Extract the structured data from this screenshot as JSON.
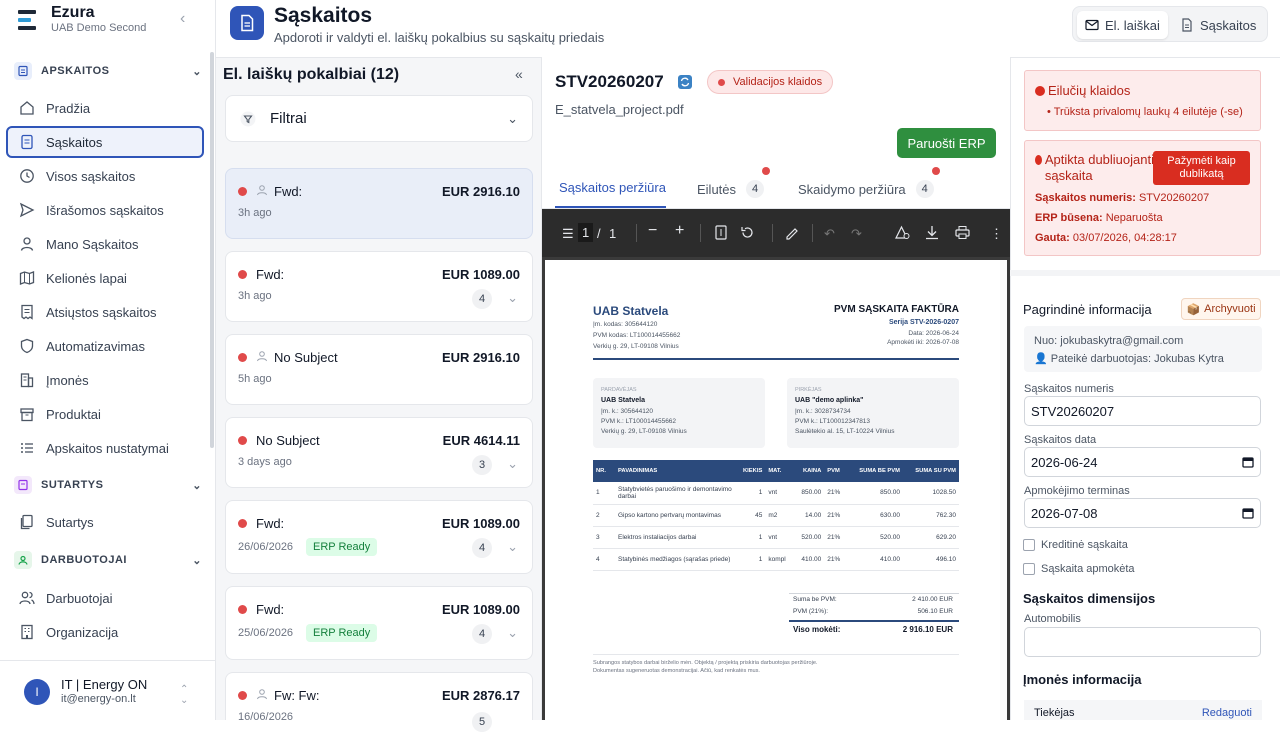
{
  "brand": {
    "name": "Ezura",
    "org": "UAB Demo Second"
  },
  "sidebar": {
    "sections": [
      {
        "label": "APSKAITOS"
      },
      {
        "label": "SUTARTYS"
      },
      {
        "label": "DARBUOTOJAI"
      }
    ],
    "items": [
      {
        "label": "Pradžia",
        "icon": "home-icon"
      },
      {
        "label": "Sąskaitos",
        "icon": "document-icon"
      },
      {
        "label": "Visos sąskaitos",
        "icon": "clock-icon"
      },
      {
        "label": "Išrašomos sąskaitos",
        "icon": "send-icon"
      },
      {
        "label": "Mano Sąskaitos",
        "icon": "user-icon"
      },
      {
        "label": "Kelionės lapai",
        "icon": "map-icon"
      },
      {
        "label": "Atsiųstos sąskaitos",
        "icon": "receipt-icon"
      },
      {
        "label": "Automatizavimas",
        "icon": "shield-icon"
      },
      {
        "label": "Įmonės",
        "icon": "building-icon"
      },
      {
        "label": "Produktai",
        "icon": "box-icon"
      },
      {
        "label": "Apskaitos nustatymai",
        "icon": "list-icon"
      },
      {
        "label": "Sutartys",
        "icon": "contract-icon"
      },
      {
        "label": "Darbuotojai",
        "icon": "users-icon"
      },
      {
        "label": "Organizacija",
        "icon": "office-icon"
      }
    ]
  },
  "user": {
    "initial": "I",
    "name": "IT | Energy ON",
    "email": "it@energy-on.lt"
  },
  "header": {
    "title": "Sąskaitos",
    "subtitle": "Apdoroti ir valdyti el. laiškų pokalbius su sąskaitų priedais",
    "tabs": [
      {
        "label": "El. laiškai"
      },
      {
        "label": "Sąskaitos"
      }
    ]
  },
  "conversations": {
    "title": "El. laiškų pokalbiai (12)",
    "filter_label": "Filtrai",
    "items": [
      {
        "subject": "Fwd:",
        "amount": "EUR 2916.10",
        "time": "3h ago",
        "count": "",
        "badge": ""
      },
      {
        "subject": "Fwd:",
        "amount": "EUR 1089.00",
        "time": "3h ago",
        "count": "4",
        "badge": ""
      },
      {
        "subject": "No Subject",
        "amount": "EUR 2916.10",
        "time": "5h ago",
        "count": "",
        "badge": ""
      },
      {
        "subject": "No Subject",
        "amount": "EUR 4614.11",
        "time": "3 days ago",
        "count": "3",
        "badge": ""
      },
      {
        "subject": "Fwd:",
        "amount": "EUR 1089.00",
        "time": "26/06/2026",
        "count": "4",
        "badge": "ERP Ready"
      },
      {
        "subject": "Fwd:",
        "amount": "EUR 1089.00",
        "time": "25/06/2026",
        "count": "4",
        "badge": "ERP Ready"
      },
      {
        "subject": "Fw: Fw:",
        "amount": "EUR 2876.17",
        "time": "16/06/2026",
        "count": "5",
        "badge": ""
      }
    ]
  },
  "detail": {
    "invoice_id": "STV20260207",
    "status_badge": "Validacijos klaidos",
    "file_name": "E_statvela_project.pdf",
    "erp_button": "Paruošti ERP",
    "tabs": [
      {
        "label": "Sąskaitos peržiūra",
        "count": ""
      },
      {
        "label": "Eilutės",
        "count": "4"
      },
      {
        "label": "Skaidymo peržiūra",
        "count": "4"
      }
    ]
  },
  "pdf": {
    "page_current": "1",
    "page_sep": "/",
    "page_total": "1",
    "seller_name": "UAB Statvela",
    "seller_code": "Įm. kodas: 305644120",
    "seller_vat": "PVM kodas: LT100014455662",
    "seller_addr": "Verkių g. 29, LT-09108 Vilnius",
    "doc_title": "PVM SĄSKAITA FAKTŪRA",
    "doc_series": "Serija STV-2026-0207",
    "doc_date": "Data: 2026-06-24",
    "doc_due": "Apmokėti iki: 2026-07-08",
    "seller_box": {
      "label": "PARDAVĖJAS",
      "name": "UAB Statvela",
      "l1": "Įm. k.: 305644120",
      "l2": "PVM k.: LT100014455662",
      "l3": "Verkių g. 29, LT-09108 Vilnius"
    },
    "buyer_box": {
      "label": "PIRKĖJAS",
      "name": "UAB \"demo aplinka\"",
      "l1": "Įm. k.: 3028734734",
      "l2": "PVM k.: LT100012347813",
      "l3": "Saulėtekio al. 15, LT-10224 Vilnius"
    },
    "table_headers": [
      "NR.",
      "PAVADINIMAS",
      "KIEKIS",
      "MAT.",
      "KAINA",
      "PVM",
      "SUMA BE PVM",
      "SUMA SU PVM"
    ],
    "rows": [
      [
        "1",
        "Statybvietės paruošimo ir demontavimo darbai",
        "1",
        "vnt",
        "850.00",
        "21%",
        "850.00",
        "1028.50"
      ],
      [
        "2",
        "Gipso kartono pertvarų montavimas",
        "45",
        "m2",
        "14.00",
        "21%",
        "630.00",
        "762.30"
      ],
      [
        "3",
        "Elektros instaliacijos darbai",
        "1",
        "vnt",
        "520.00",
        "21%",
        "520.00",
        "629.20"
      ],
      [
        "4",
        "Statybinės medžiagos (sąrašas priede)",
        "1",
        "kompl",
        "410.00",
        "21%",
        "410.00",
        "496.10"
      ]
    ],
    "sum_label": "Suma be PVM:",
    "sum_value": "2 410.00 EUR",
    "vat_label": "PVM (21%):",
    "vat_value": "506.10 EUR",
    "total_label": "Viso mokėti:",
    "total_value": "2 916.10 EUR",
    "footer1": "Subrangos statybos darbai birželio mėn. Objektą / projektą priskiria darbuotojas peržiūroje.",
    "footer2": "Dokumentas sugeneruotas demonstracijai. Ačiū, kad renkatės mus."
  },
  "right": {
    "line_errors": {
      "title": "Eilučių klaidos",
      "item": "Trūksta privalomų laukų 4 eilutėje (-se)"
    },
    "duplicate": {
      "title": "Aptikta dubliuojanti sąskaita",
      "button": "Pažymėti kaip dublikatą",
      "number_label": "Sąskaitos numeris:",
      "number_value": "STV20260207",
      "erp_label": "ERP būsena:",
      "erp_value": "Neparuošta",
      "received_label": "Gauta:",
      "received_value": "03/07/2026, 04:28:17"
    },
    "main_info_title": "Pagrindinė informacija",
    "archive_button": "Archyvuoti",
    "from": "Nuo: jokubaskytra@gmail.com",
    "submitted_by": "Pateikė darbuotojas: Jokubas Kytra",
    "fields": {
      "number_label": "Sąskaitos numeris",
      "number_value": "STV20260207",
      "date_label": "Sąskaitos data",
      "date_value": "2026-06-24",
      "due_label": "Apmokėjimo terminas",
      "due_value": "2026-07-08"
    },
    "credit_label": "Kreditinė sąskaita",
    "paid_label": "Sąskaita apmokėta",
    "dimensions_title": "Sąskaitos dimensijos",
    "automobile_label": "Automobilis",
    "company_title": "Įmonės informacija",
    "supplier_label": "Tiekėjas",
    "edit_link": "Redaguoti"
  },
  "colors": {
    "accent": "#2f55b8",
    "error": "#d92d20",
    "success": "#2f8f3f"
  }
}
